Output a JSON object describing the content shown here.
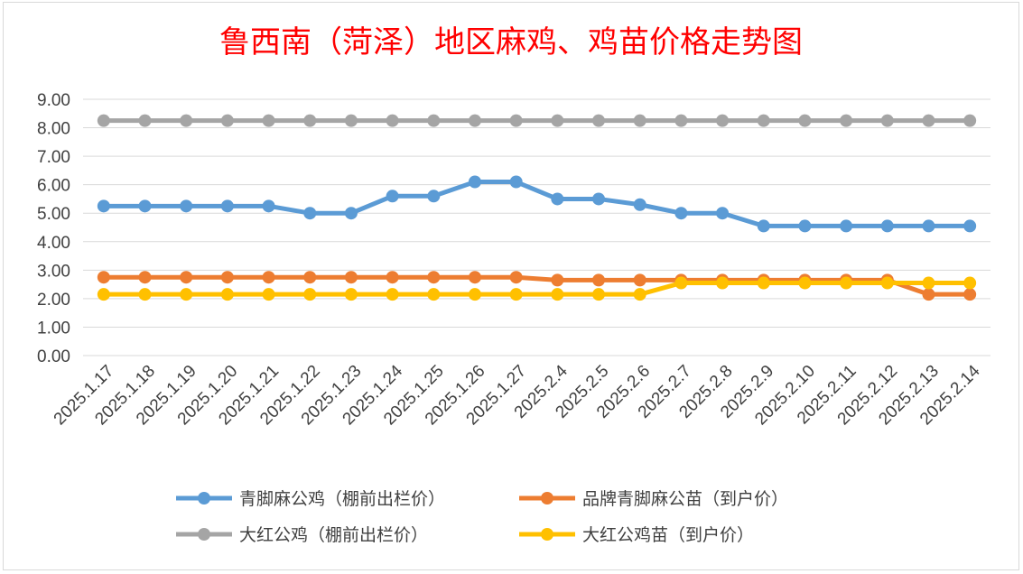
{
  "chart_data": {
    "type": "line",
    "title": "鲁西南（菏泽）地区麻鸡、鸡苗价格走势图",
    "categories": [
      "2025.1.17",
      "2025.1.18",
      "2025.1.19",
      "2025.1.20",
      "2025.1.21",
      "2025.1.22",
      "2025.1.23",
      "2025.1.24",
      "2025.1.25",
      "2025.1.26",
      "2025.1.27",
      "2025.2.4",
      "2025.2.5",
      "2025.2.6",
      "2025.2.7",
      "2025.2.8",
      "2025.2.9",
      "2025.2.10",
      "2025.2.11",
      "2025.2.12",
      "2025.2.13",
      "2025.2.14"
    ],
    "yticks": [
      "0.00",
      "1.00",
      "2.00",
      "3.00",
      "4.00",
      "5.00",
      "6.00",
      "7.00",
      "8.00",
      "9.00"
    ],
    "ylim": [
      0,
      9
    ],
    "grid": true,
    "legend_position": "bottom",
    "series": [
      {
        "name": "青脚麻公鸡（棚前出栏价）",
        "color": "#5b9bd5",
        "values": [
          5.25,
          5.25,
          5.25,
          5.25,
          5.25,
          5.0,
          5.0,
          5.6,
          5.6,
          6.1,
          6.1,
          5.5,
          5.5,
          5.3,
          5.0,
          5.0,
          4.55,
          4.55,
          4.55,
          4.55,
          4.55,
          4.55
        ]
      },
      {
        "name": "品牌青脚麻公苗（到户价）",
        "color": "#ed7d31",
        "values": [
          2.75,
          2.75,
          2.75,
          2.75,
          2.75,
          2.75,
          2.75,
          2.75,
          2.75,
          2.75,
          2.75,
          2.65,
          2.65,
          2.65,
          2.65,
          2.65,
          2.65,
          2.65,
          2.65,
          2.65,
          2.15,
          2.15
        ]
      },
      {
        "name": "大红公鸡（棚前出栏价）",
        "color": "#a5a5a5",
        "values": [
          8.25,
          8.25,
          8.25,
          8.25,
          8.25,
          8.25,
          8.25,
          8.25,
          8.25,
          8.25,
          8.25,
          8.25,
          8.25,
          8.25,
          8.25,
          8.25,
          8.25,
          8.25,
          8.25,
          8.25,
          8.25,
          8.25
        ]
      },
      {
        "name": "大红公鸡苗（到户价）",
        "color": "#ffc000",
        "values": [
          2.15,
          2.15,
          2.15,
          2.15,
          2.15,
          2.15,
          2.15,
          2.15,
          2.15,
          2.15,
          2.15,
          2.15,
          2.15,
          2.15,
          2.55,
          2.55,
          2.55,
          2.55,
          2.55,
          2.55,
          2.55,
          2.55
        ]
      }
    ]
  }
}
